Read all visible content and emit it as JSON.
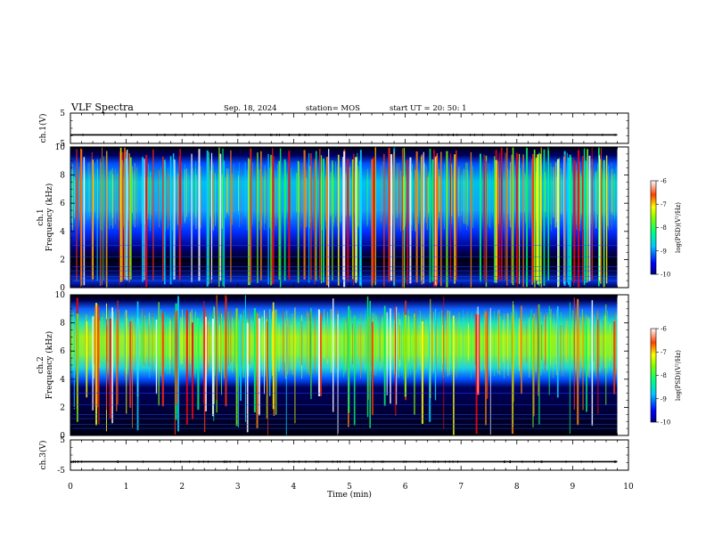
{
  "header": {
    "title": "VLF Spectra",
    "date": "Sep. 18, 2024",
    "station": "station= MOS",
    "start": "start  UT =  20: 50: 1"
  },
  "chart_data": [
    {
      "type": "line",
      "name": "ch1-voltage",
      "ylabel": "ch.1(V)",
      "ylim": [
        -5,
        5
      ],
      "yticks": [
        "5",
        "-5"
      ],
      "x": [
        0,
        9.8
      ],
      "values": [
        -2.2,
        -2.2
      ],
      "xlim": [
        0,
        10
      ]
    },
    {
      "type": "heatmap",
      "name": "ch1-spectrogram",
      "ylabel": "ch.1\nFrequency (kHz)",
      "ylabel_lines": [
        "ch.1",
        "Frequency (kHz)"
      ],
      "ylim": [
        0,
        10
      ],
      "yticks": [
        "0",
        "2",
        "4",
        "6",
        "8",
        "10"
      ],
      "xlim": [
        0,
        9.8
      ],
      "colorbar": {
        "label": "log(PSD)(V²/Hz)",
        "range": [
          -10,
          -6
        ],
        "ticks": [
          "-6",
          "-7",
          "-8",
          "-9",
          "-10"
        ]
      },
      "band_khz": [
        4,
        9
      ],
      "strong_band_khz": [
        1,
        9.5
      ],
      "note_pattern": "broadband vertical sferic bursts across full range"
    },
    {
      "type": "heatmap",
      "name": "ch2-spectrogram",
      "ylabel": "ch.2\nFrequency (kHz)",
      "ylabel_lines": [
        "ch.2",
        "Frequency (kHz)"
      ],
      "ylim": [
        0,
        10
      ],
      "yticks": [
        "0",
        "2",
        "4",
        "6",
        "8",
        "10"
      ],
      "xlim": [
        0,
        9.8
      ],
      "colorbar": {
        "label": "log(PSD)(V²/Hz)",
        "range": [
          -10,
          -6
        ],
        "ticks": [
          "-6",
          "-7",
          "-8",
          "-9",
          "-10"
        ]
      },
      "band_khz": [
        4,
        9
      ]
    },
    {
      "type": "line",
      "name": "ch3-voltage",
      "ylabel": "ch.3(V)",
      "ylim": [
        -5,
        5
      ],
      "yticks": [
        "5",
        "-5"
      ],
      "x": [
        0,
        9.8
      ],
      "values": [
        -2.2,
        -2.2
      ],
      "xlim": [
        0,
        10
      ]
    }
  ],
  "xaxis": {
    "label": "Time (min)",
    "range": [
      0,
      10
    ],
    "ticks": [
      "0",
      "1",
      "2",
      "3",
      "4",
      "5",
      "6",
      "7",
      "8",
      "9",
      "10"
    ]
  }
}
